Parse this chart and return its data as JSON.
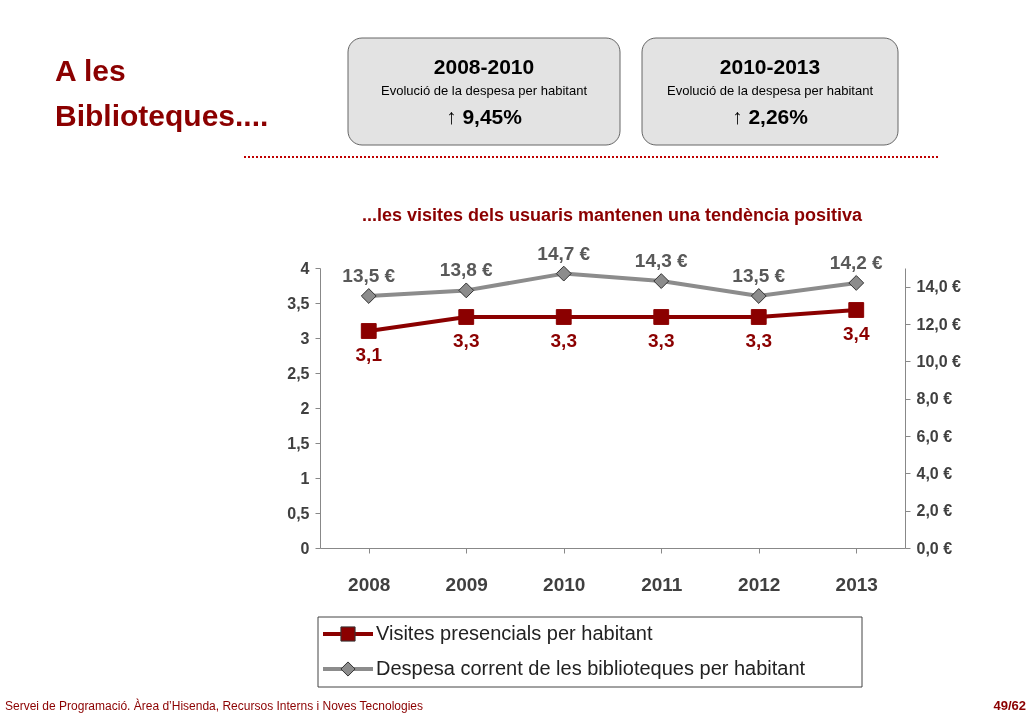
{
  "chart_data": {
    "type": "line",
    "title": "A les Biblioteques....",
    "subtitle": "...les visites dels usuaris mantenen una tendència positiva",
    "annotations": [
      "2008-2010",
      "Evolució de la despesa per habitant",
      "↑ 9,45%",
      "2010-2013",
      "Evolució de la despesa per habitant",
      "↑ 2,26%",
      "Servei de Programació. Àrea d’Hisenda, Recursos Interns i Noves Tecnologies",
      "49/62"
    ],
    "categories": [
      "2008",
      "2009",
      "2010",
      "2011",
      "2012",
      "2013"
    ],
    "series": [
      {
        "name": "Visites presencials per habitant",
        "color": "#8b0000",
        "marker": "square",
        "values": [
          3.1,
          3.3,
          3.3,
          3.3,
          3.3,
          3.4
        ],
        "value_labels": [
          "3,1",
          "3,3",
          "3,3",
          "3,3",
          "3,3",
          "3,4"
        ]
      },
      {
        "name": "Despesa corrent de les biblioteques per habitant",
        "color": "#8c8c8c",
        "marker": "diamond",
        "axis": "y2",
        "values": [
          13.5,
          13.8,
          14.7,
          14.3,
          13.5,
          14.2
        ],
        "value_labels": [
          "13,5 €",
          "13,8 €",
          "14,7 €",
          "14,3 €",
          "13,5 €",
          "14,2 €"
        ]
      }
    ],
    "ylim": [
      0,
      4
    ],
    "yticks": [
      0,
      {
        "value": 0.5,
        "label": "0,5"
      },
      1,
      {
        "value": 1.5,
        "label": "1,5"
      },
      2,
      {
        "value": 2.5,
        "label": "2,5"
      },
      3,
      {
        "value": 3.5,
        "label": "3,5"
      },
      4
    ],
    "y2lim": [
      0,
      15
    ],
    "y2ticks": [
      {
        "value": 0,
        "label": "0,0 €"
      },
      {
        "value": 2,
        "label": "2,0 €"
      },
      {
        "value": 4,
        "label": "4,0 €"
      },
      {
        "value": 6,
        "label": "6,0 €"
      },
      {
        "value": 8,
        "label": "8,0 €"
      },
      {
        "value": 10,
        "label": "10,0 €"
      },
      {
        "value": 12,
        "label": "12,0 €"
      },
      {
        "value": 14,
        "label": "14,0 €"
      }
    ],
    "grid": false,
    "legend": "bottom",
    "line_style": "solid"
  }
}
